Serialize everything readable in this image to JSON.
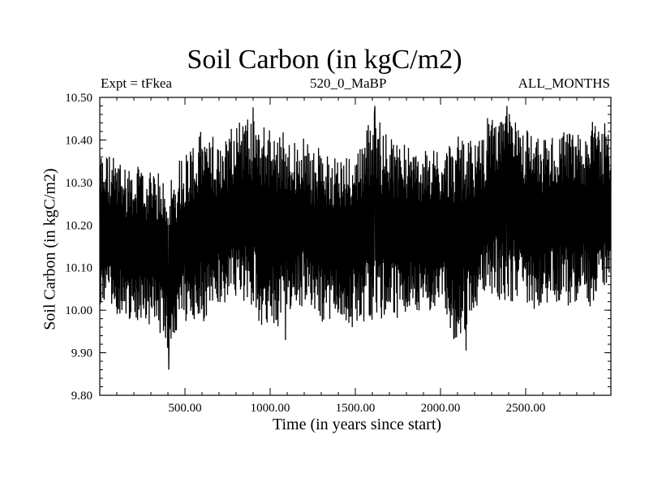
{
  "chart_data": {
    "type": "line",
    "title": "Soil Carbon (in kgC/m2)",
    "subtitle_left": "Expt = tFkea",
    "subtitle_center": "520_0_MaBP",
    "subtitle_right": "ALL_MONTHS",
    "xlabel": "Time (in years since start)",
    "ylabel": "Soil Carbon (in kgC/m2)",
    "xlim": [
      0,
      3000
    ],
    "ylim": [
      9.8,
      10.5
    ],
    "x_ticks": [
      "500.00",
      "1000.00",
      "1500.00",
      "2000.00",
      "2500.00"
    ],
    "y_ticks": [
      "9.80",
      "9.90",
      "10.00",
      "10.10",
      "10.20",
      "10.30",
      "10.40",
      "10.50"
    ],
    "series": [
      {
        "x": [
          0,
          100,
          200,
          300,
          400,
          500,
          600,
          700,
          800,
          900,
          1000,
          1100,
          1200,
          1300,
          1400,
          1500,
          1600,
          1700,
          1800,
          1900,
          2000,
          2100,
          2200,
          2300,
          2400,
          2500,
          2600,
          2700,
          2800,
          2900,
          3000
        ],
        "upper": [
          10.38,
          10.36,
          10.34,
          10.33,
          10.3,
          10.38,
          10.42,
          10.4,
          10.45,
          10.47,
          10.43,
          10.41,
          10.4,
          10.37,
          10.36,
          10.38,
          10.47,
          10.41,
          10.39,
          10.37,
          10.38,
          10.41,
          10.39,
          10.46,
          10.47,
          10.43,
          10.4,
          10.41,
          10.43,
          10.44,
          10.45
        ],
        "lower": [
          10.01,
          9.99,
          9.98,
          9.97,
          9.9,
          9.98,
          9.96,
          10.0,
          10.02,
          10.0,
          9.94,
          9.99,
          10.01,
          9.97,
          9.96,
          9.95,
          9.98,
          9.98,
          9.99,
          9.99,
          10.0,
          9.92,
          10.0,
          10.03,
          10.02,
          10.0,
          10.0,
          10.02,
          10.01,
          10.0,
          10.08
        ],
        "mean": [
          10.17,
          10.16,
          10.15,
          10.15,
          10.13,
          10.17,
          10.18,
          10.19,
          10.22,
          10.23,
          10.19,
          10.19,
          10.2,
          10.17,
          10.16,
          10.16,
          10.2,
          10.19,
          10.18,
          10.18,
          10.18,
          10.17,
          10.19,
          10.24,
          10.24,
          10.21,
          10.2,
          10.21,
          10.22,
          10.21,
          10.22
        ]
      }
    ],
    "extremes": [
      {
        "x": 405,
        "y": 9.86
      },
      {
        "x": 1090,
        "y": 9.93
      },
      {
        "x": 2150,
        "y": 9.905
      },
      {
        "x": 1615,
        "y": 10.48
      },
      {
        "x": 2390,
        "y": 10.48
      }
    ],
    "grid": false,
    "line_color": "#000000"
  }
}
